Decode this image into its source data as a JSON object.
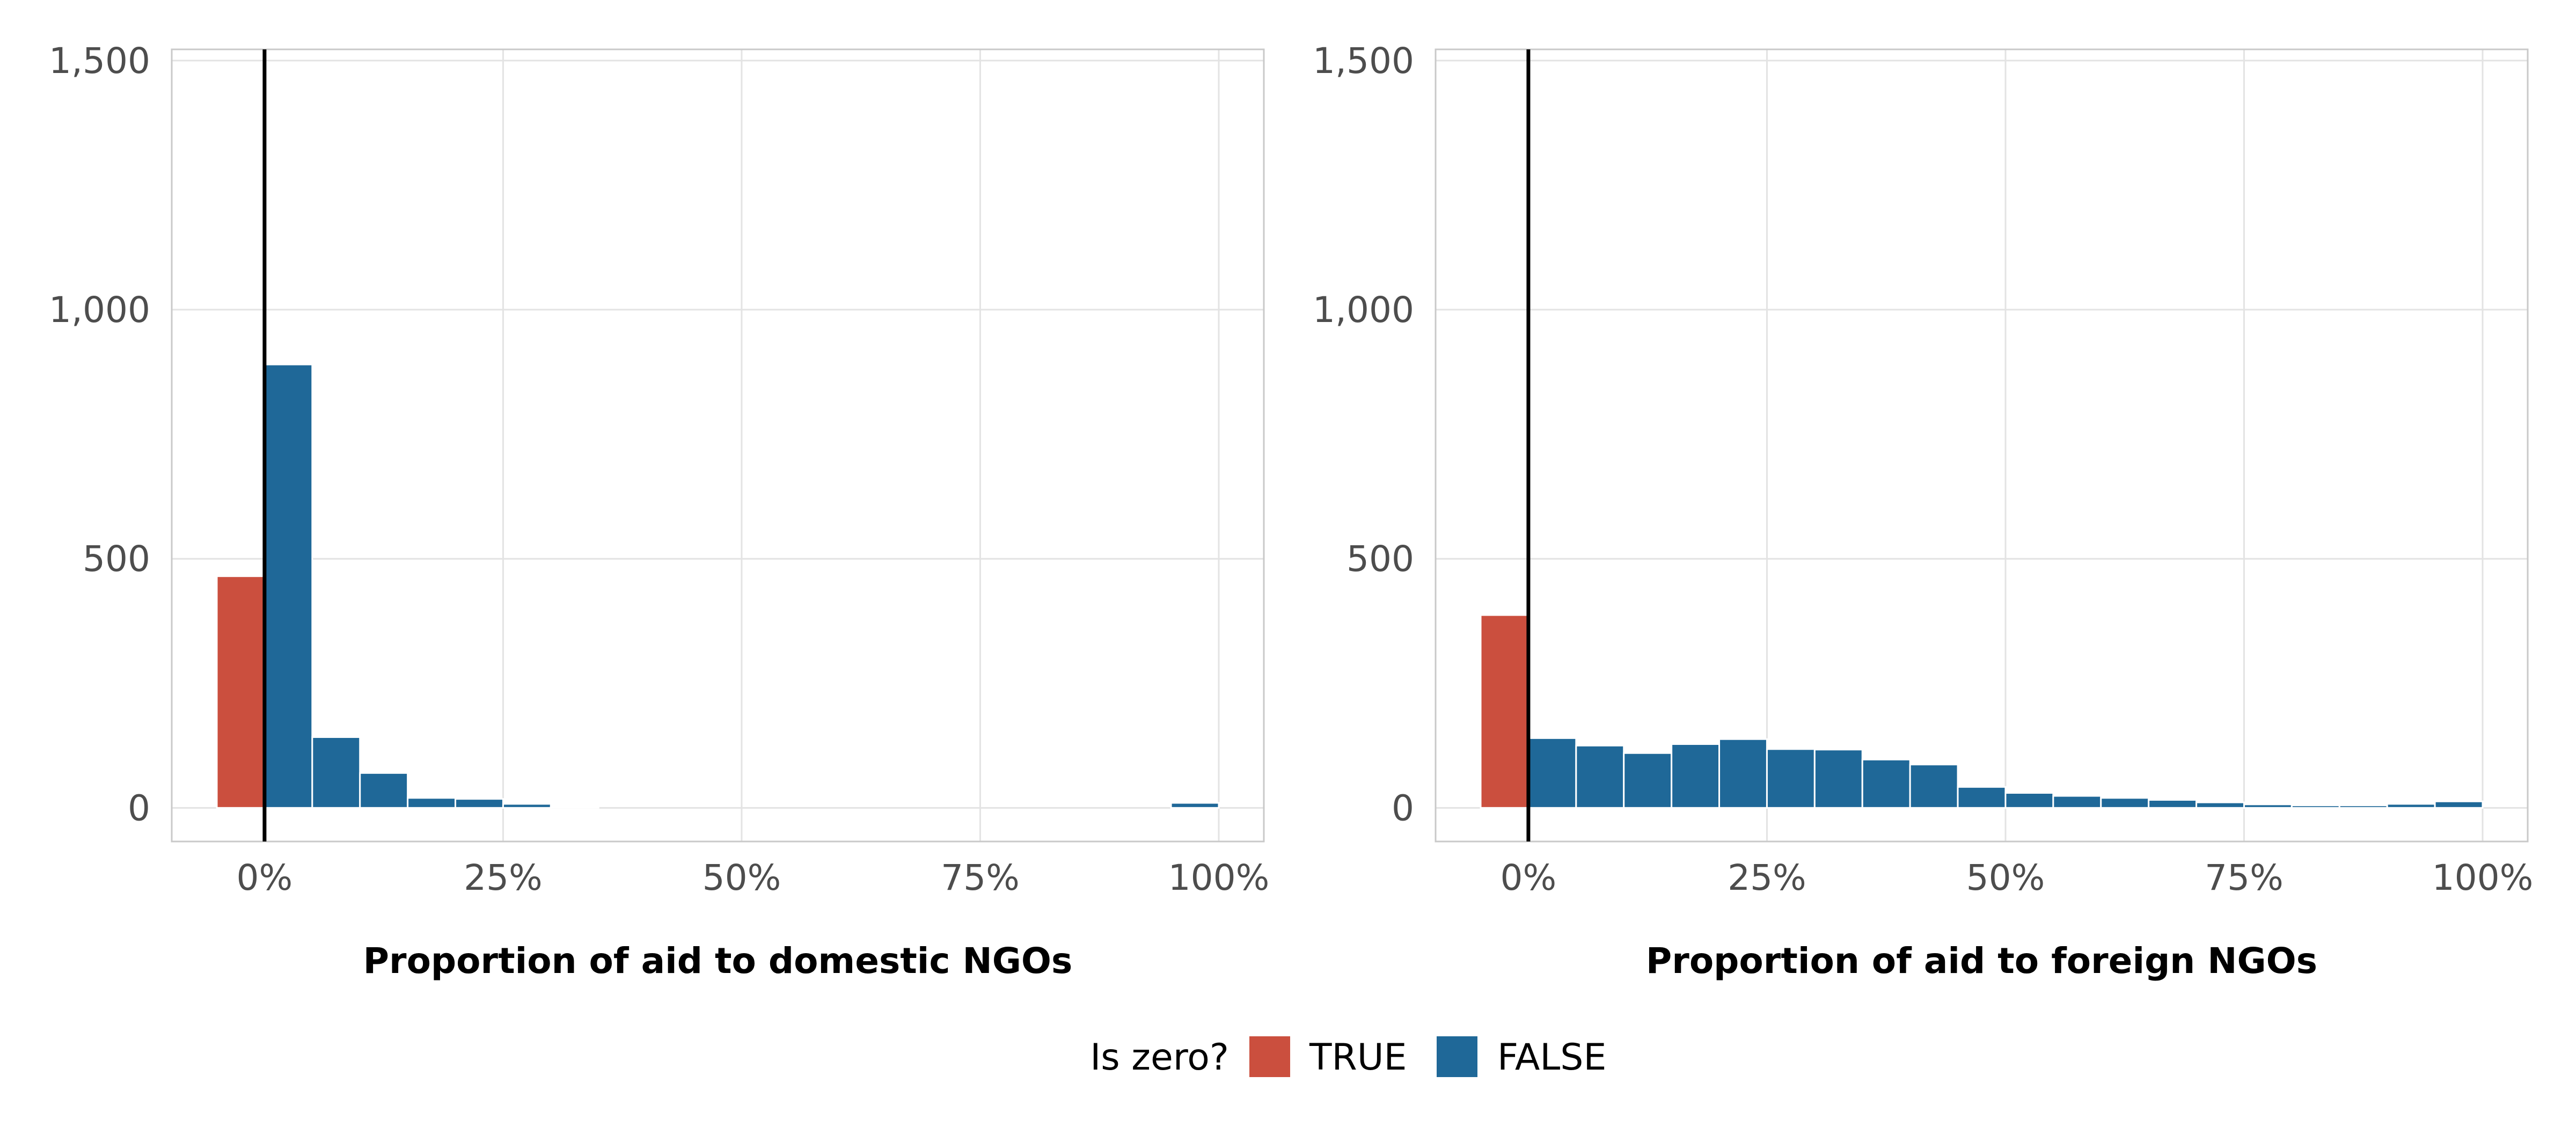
{
  "chart_data": [
    {
      "type": "bar",
      "xlabel": "Proportion of aid to domestic NGOs",
      "ylabel": "",
      "ylim": [
        0,
        1500
      ],
      "xlim": [
        -0.05,
        1.0
      ],
      "x_ticks": [
        {
          "value": 0,
          "label": "0%"
        },
        {
          "value": 0.25,
          "label": "25%"
        },
        {
          "value": 0.5,
          "label": "50%"
        },
        {
          "value": 0.75,
          "label": "75%"
        },
        {
          "value": 1,
          "label": "100%"
        }
      ],
      "y_ticks": [
        {
          "value": 0,
          "label": "0"
        },
        {
          "value": 500,
          "label": "500"
        },
        {
          "value": 1000,
          "label": "1,000"
        },
        {
          "value": 1500,
          "label": "1,500"
        }
      ],
      "reference_line_x": 0,
      "grid": true,
      "bin_width": 0.05,
      "series": [
        {
          "name": "TRUE",
          "color": "#cb4f3e",
          "bins": [
            {
              "x": -0.05,
              "count": 465
            }
          ]
        },
        {
          "name": "FALSE",
          "color": "#1f6898",
          "bins": [
            {
              "x": 0.0,
              "count": 890
            },
            {
              "x": 0.05,
              "count": 142
            },
            {
              "x": 0.1,
              "count": 70
            },
            {
              "x": 0.15,
              "count": 20
            },
            {
              "x": 0.2,
              "count": 18
            },
            {
              "x": 0.25,
              "count": 8
            },
            {
              "x": 0.3,
              "count": 3
            },
            {
              "x": 0.95,
              "count": 10
            }
          ]
        }
      ]
    },
    {
      "type": "bar",
      "xlabel": "Proportion of aid to foreign NGOs",
      "ylabel": "",
      "ylim": [
        0,
        1500
      ],
      "xlim": [
        -0.05,
        1.0
      ],
      "x_ticks": [
        {
          "value": 0,
          "label": "0%"
        },
        {
          "value": 0.25,
          "label": "25%"
        },
        {
          "value": 0.5,
          "label": "50%"
        },
        {
          "value": 0.75,
          "label": "75%"
        },
        {
          "value": 1,
          "label": "100%"
        }
      ],
      "y_ticks": [
        {
          "value": 0,
          "label": "0"
        },
        {
          "value": 500,
          "label": "500"
        },
        {
          "value": 1000,
          "label": "1,000"
        },
        {
          "value": 1500,
          "label": "1,500"
        }
      ],
      "reference_line_x": 0,
      "grid": true,
      "bin_width": 0.05,
      "series": [
        {
          "name": "TRUE",
          "color": "#cb4f3e",
          "bins": [
            {
              "x": -0.05,
              "count": 387
            }
          ]
        },
        {
          "name": "FALSE",
          "color": "#1f6898",
          "bins": [
            {
              "x": 0.0,
              "count": 140
            },
            {
              "x": 0.05,
              "count": 125
            },
            {
              "x": 0.1,
              "count": 110
            },
            {
              "x": 0.15,
              "count": 128
            },
            {
              "x": 0.2,
              "count": 138
            },
            {
              "x": 0.25,
              "count": 118
            },
            {
              "x": 0.3,
              "count": 117
            },
            {
              "x": 0.35,
              "count": 97
            },
            {
              "x": 0.4,
              "count": 87
            },
            {
              "x": 0.45,
              "count": 42
            },
            {
              "x": 0.5,
              "count": 30
            },
            {
              "x": 0.55,
              "count": 24
            },
            {
              "x": 0.6,
              "count": 20
            },
            {
              "x": 0.65,
              "count": 16
            },
            {
              "x": 0.7,
              "count": 11
            },
            {
              "x": 0.75,
              "count": 7
            },
            {
              "x": 0.8,
              "count": 5
            },
            {
              "x": 0.85,
              "count": 5
            },
            {
              "x": 0.9,
              "count": 8
            },
            {
              "x": 0.95,
              "count": 13
            }
          ]
        }
      ]
    }
  ],
  "legend": {
    "title": "Is zero?",
    "position": "bottom",
    "items": [
      {
        "label": "TRUE",
        "color": "#cb4f3e"
      },
      {
        "label": "FALSE",
        "color": "#1f6898"
      }
    ]
  }
}
